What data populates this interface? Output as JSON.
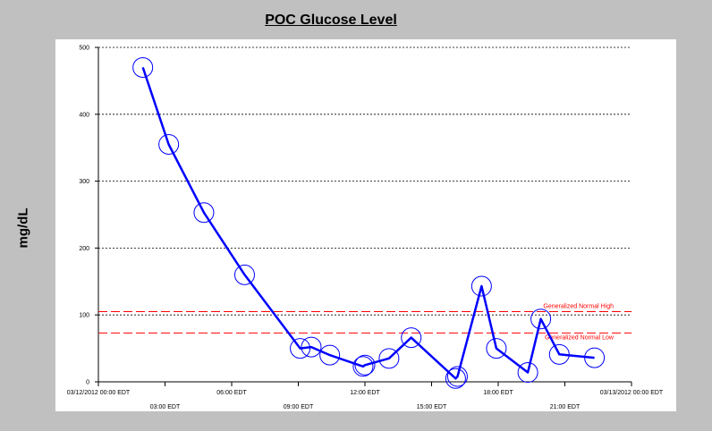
{
  "chart_data": {
    "type": "line",
    "title": "POC Glucose Level",
    "xlabel": "",
    "ylabel": "mg/dL",
    "ylim": [
      0,
      500
    ],
    "yticks": [
      0,
      100,
      200,
      300,
      400,
      500
    ],
    "x_start": "2012-03-12 00:00",
    "x_end": "2012-03-13 00:00",
    "xticks": [
      {
        "label": "03/12/2012 00:00 EDT",
        "x": "2012-03-12 00:00",
        "row": "upper"
      },
      {
        "label": "03:00 EDT",
        "x": "2012-03-12 03:00",
        "row": "lower"
      },
      {
        "label": "06:00 EDT",
        "x": "2012-03-12 06:00",
        "row": "upper"
      },
      {
        "label": "09:00 EDT",
        "x": "2012-03-12 09:00",
        "row": "lower"
      },
      {
        "label": "12:00 EDT",
        "x": "2012-03-12 12:00",
        "row": "upper"
      },
      {
        "label": "15:00 EDT",
        "x": "2012-03-12 15:00",
        "row": "lower"
      },
      {
        "label": "18:00 EDT",
        "x": "2012-03-12 18:00",
        "row": "upper"
      },
      {
        "label": "21:00 EDT",
        "x": "2012-03-12 21:00",
        "row": "lower"
      },
      {
        "label": "03/13/2012 00:00 EDT",
        "x": "2012-03-13 00:00",
        "row": "upper"
      }
    ],
    "grid": true,
    "series": [
      {
        "color": "#0000ff",
        "marker": "open-circle",
        "points": [
          {
            "x": "2012-03-12 02:00",
            "y": 470
          },
          {
            "x": "2012-03-12 03:10",
            "y": 355
          },
          {
            "x": "2012-03-12 04:45",
            "y": 253
          },
          {
            "x": "2012-03-12 06:35",
            "y": 160
          },
          {
            "x": "2012-03-12 09:05",
            "y": 50
          },
          {
            "x": "2012-03-12 09:35",
            "y": 52
          },
          {
            "x": "2012-03-12 10:25",
            "y": 40
          },
          {
            "x": "2012-03-12 11:55",
            "y": 23
          },
          {
            "x": "2012-03-12 12:00",
            "y": 25
          },
          {
            "x": "2012-03-12 13:05",
            "y": 35
          },
          {
            "x": "2012-03-12 14:05",
            "y": 66
          },
          {
            "x": "2012-03-12 16:05",
            "y": 5
          },
          {
            "x": "2012-03-12 16:10",
            "y": 8
          },
          {
            "x": "2012-03-12 17:15",
            "y": 143
          },
          {
            "x": "2012-03-12 17:55",
            "y": 50
          },
          {
            "x": "2012-03-12 19:20",
            "y": 14
          },
          {
            "x": "2012-03-12 19:55",
            "y": 94
          },
          {
            "x": "2012-03-12 20:45",
            "y": 41
          },
          {
            "x": "2012-03-12 22:20",
            "y": 36
          }
        ]
      }
    ],
    "reference_lines": [
      {
        "label": "Generalized Normal High",
        "y": 105,
        "color": "#ff0000"
      },
      {
        "label": "Generalized Normal Low",
        "y": 73,
        "color": "#ff0000"
      }
    ]
  }
}
